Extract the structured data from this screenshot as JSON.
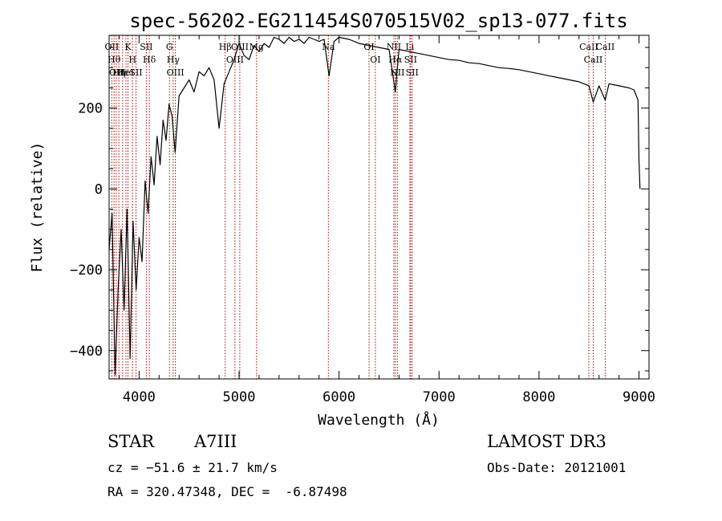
{
  "chart_data": {
    "type": "line",
    "title": "spec-56202-EG211454S070515V02_sp13-077.fits",
    "xlabel": "Wavelength (Å)",
    "ylabel": "Flux (relative)",
    "xlim": [
      3700,
      9100
    ],
    "ylim": [
      -470,
      380
    ],
    "x_ticks": [
      4000,
      5000,
      6000,
      7000,
      8000,
      9000
    ],
    "y_ticks": [
      -400,
      -200,
      0,
      200
    ],
    "grid": false,
    "series": [
      {
        "x": [
          3700,
          3730,
          3760,
          3790,
          3820,
          3850,
          3880,
          3910,
          3940,
          3970,
          4000,
          4030,
          4060,
          4090,
          4120,
          4150,
          4180,
          4210,
          4240,
          4270,
          4300,
          4330,
          4360,
          4400,
          4450,
          4500,
          4550,
          4600,
          4650,
          4700,
          4750,
          4800,
          4850,
          4900,
          4950,
          5000,
          5050,
          5100,
          5150,
          5200,
          5250,
          5300,
          5350,
          5400,
          5450,
          5500,
          5550,
          5600,
          5650,
          5700,
          5750,
          5800,
          5850,
          5900,
          5950,
          6000,
          6100,
          6200,
          6300,
          6400,
          6500,
          6563,
          6600,
          6700,
          6800,
          6900,
          7000,
          7100,
          7200,
          7300,
          7400,
          7500,
          7600,
          7700,
          7800,
          7900,
          8000,
          8100,
          8200,
          8300,
          8400,
          8500,
          8542,
          8600,
          8662,
          8700,
          8800,
          8900,
          8950,
          8990,
          9000,
          9010
        ],
        "y": [
          -150,
          -60,
          -460,
          -250,
          -100,
          -300,
          -50,
          -420,
          -80,
          -250,
          -120,
          -180,
          20,
          -60,
          80,
          10,
          130,
          60,
          170,
          120,
          210,
          180,
          90,
          230,
          250,
          270,
          240,
          290,
          280,
          300,
          270,
          150,
          260,
          290,
          320,
          360,
          330,
          320,
          355,
          340,
          360,
          350,
          375,
          370,
          360,
          375,
          365,
          370,
          360,
          375,
          370,
          365,
          370,
          280,
          365,
          375,
          370,
          360,
          355,
          350,
          345,
          240,
          345,
          340,
          335,
          330,
          325,
          320,
          318,
          312,
          310,
          305,
          300,
          298,
          295,
          290,
          285,
          280,
          275,
          270,
          265,
          255,
          215,
          255,
          220,
          260,
          255,
          250,
          245,
          220,
          70,
          0
        ]
      }
    ],
    "lines": [
      {
        "x": 3727,
        "label": "OII"
      },
      {
        "x": 3750,
        "label": "Hθ"
      },
      {
        "x": 3771,
        "label": "OII"
      },
      {
        "x": 3798,
        "label": "Hη"
      },
      {
        "x": 3835,
        "label": "Hε"
      },
      {
        "x": 3869,
        "label": "HeI"
      },
      {
        "x": 3889,
        "label": "K"
      },
      {
        "x": 3934,
        "label": "H"
      },
      {
        "x": 3969,
        "label": "SII"
      },
      {
        "x": 4072,
        "label": "SII"
      },
      {
        "x": 4102,
        "label": "Hδ"
      },
      {
        "x": 4304,
        "label": "G"
      },
      {
        "x": 4341,
        "label": "Hγ"
      },
      {
        "x": 4363,
        "label": "OIII"
      },
      {
        "x": 4861,
        "label": "Hβ"
      },
      {
        "x": 4959,
        "label": "OIII"
      },
      {
        "x": 5007,
        "label": "OIII"
      },
      {
        "x": 5175,
        "label": "Mg"
      },
      {
        "x": 5893,
        "label": "Na"
      },
      {
        "x": 6300,
        "label": "OI"
      },
      {
        "x": 6363,
        "label": "OI"
      },
      {
        "x": 6548,
        "label": "NII"
      },
      {
        "x": 6563,
        "label": "Hα"
      },
      {
        "x": 6583,
        "label": "NII"
      },
      {
        "x": 6716,
        "label": "SII"
      },
      {
        "x": 6731,
        "label": "SII"
      },
      {
        "x": 6708,
        "label": "Li"
      },
      {
        "x": 8498,
        "label": "CaII"
      },
      {
        "x": 8542,
        "label": "CaII"
      },
      {
        "x": 8662,
        "label": "CaII"
      }
    ]
  },
  "info": {
    "class_label": "STAR",
    "subclass": "A7III",
    "cz": "cz = −51.6 ± 21.7 km/s",
    "radec": "RA = 320.47348, DEC =  -6.87498",
    "survey": "LAMOST DR3",
    "obsdate": "Obs-Date: 20121001"
  }
}
